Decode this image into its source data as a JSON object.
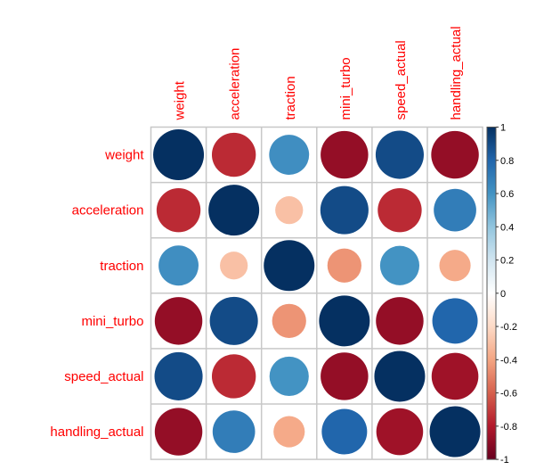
{
  "chart_data": {
    "type": "heatmap",
    "subtype": "corrplot-circle",
    "title": "",
    "variables": [
      "weight",
      "acceleration",
      "traction",
      "mini_turbo",
      "speed_actual",
      "handling_actual"
    ],
    "matrix": [
      [
        1.0,
        -0.75,
        0.62,
        -0.88,
        0.9,
        -0.88
      ],
      [
        -0.75,
        1.0,
        -0.3,
        0.9,
        -0.75,
        0.7
      ],
      [
        0.62,
        -0.3,
        1.0,
        -0.45,
        0.6,
        -0.38
      ],
      [
        -0.88,
        0.9,
        -0.45,
        1.0,
        -0.88,
        0.8
      ],
      [
        0.9,
        -0.75,
        0.6,
        -0.88,
        1.0,
        -0.85
      ],
      [
        -0.88,
        0.7,
        -0.38,
        0.8,
        -0.85,
        1.0
      ]
    ],
    "colorbar": {
      "range": [
        -1,
        1
      ],
      "ticks": [
        "1",
        "0.8",
        "0.6",
        "0.4",
        "0.2",
        "0",
        "-0.2",
        "-0.4",
        "-0.6",
        "-0.8",
        "-1"
      ],
      "colors": [
        "#67001f",
        "#b2182b",
        "#d6604d",
        "#f4a582",
        "#fddbc7",
        "#ffffff",
        "#d1e5f0",
        "#92c5de",
        "#4393c3",
        "#2166ac",
        "#053061"
      ]
    },
    "label_color": "#ff0000",
    "grid_color": "#c8c8c8"
  }
}
